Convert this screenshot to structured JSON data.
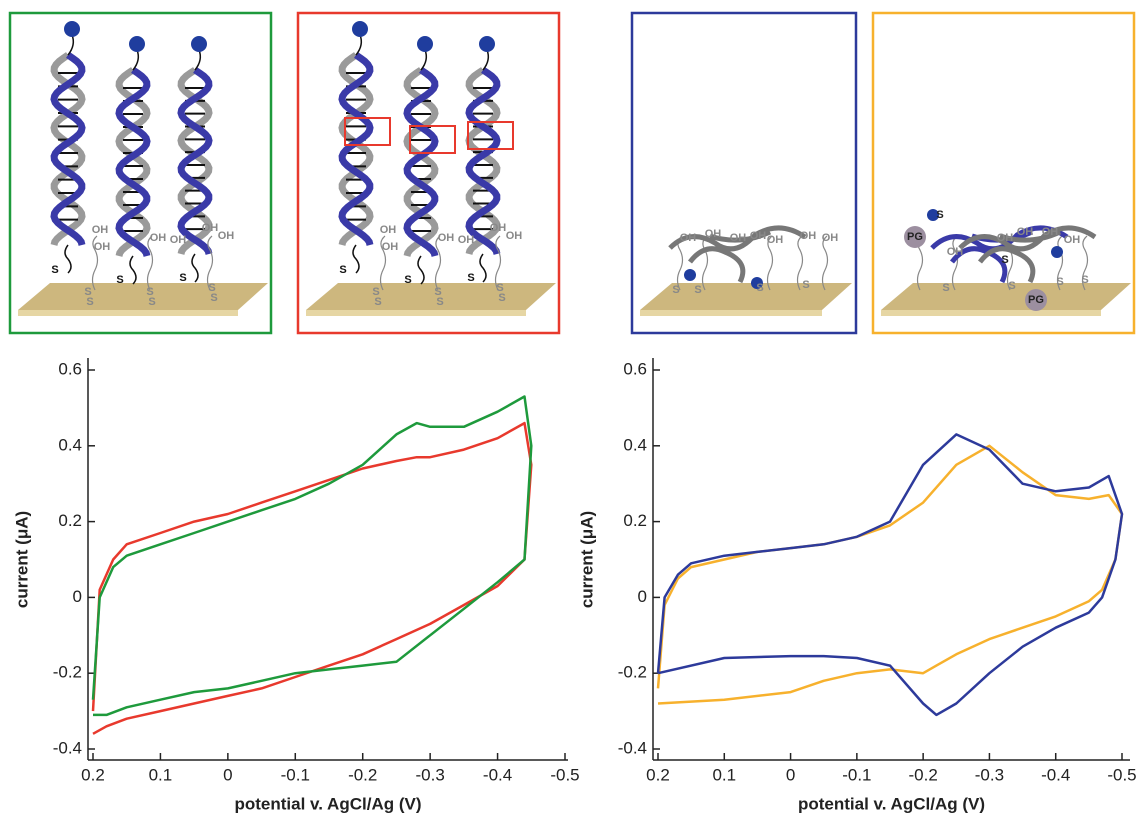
{
  "chart_data": [
    {
      "type": "line",
      "x_label": "potential v. AgCl/Ag (V)",
      "y_label": "current (μA)",
      "x": [
        0.2,
        0.19,
        0.17,
        0.15,
        0.1,
        0.05,
        0,
        -0.05,
        -0.1,
        -0.15,
        -0.2,
        -0.25,
        -0.28,
        -0.3,
        -0.35,
        -0.4,
        -0.44,
        -0.45,
        -0.44,
        -0.4,
        -0.35,
        -0.3,
        -0.25,
        -0.2,
        -0.15,
        -0.1,
        -0.05,
        0,
        0.05,
        0.1,
        0.15,
        0.18,
        0.2
      ],
      "xlim": [
        0.2,
        -0.5
      ],
      "xticks": [
        0.2,
        0.1,
        0,
        -0.1,
        -0.2,
        -0.3,
        -0.4,
        -0.5
      ],
      "ylim": [
        -0.4,
        0.6
      ],
      "yticks": [
        0.6,
        0.4,
        0.2,
        0,
        -0.2,
        -0.4
      ],
      "series": [
        {
          "color": "#e8392d",
          "values": [
            -0.3,
            0.02,
            0.1,
            0.14,
            0.17,
            0.2,
            0.22,
            0.25,
            0.28,
            0.31,
            0.34,
            0.36,
            0.37,
            0.37,
            0.39,
            0.42,
            0.46,
            0.35,
            0.1,
            0.03,
            -0.02,
            -0.07,
            -0.11,
            -0.15,
            -0.18,
            -0.21,
            -0.24,
            -0.26,
            -0.28,
            -0.3,
            -0.32,
            -0.34,
            -0.36
          ]
        },
        {
          "color": "#1e9a3c",
          "values": [
            -0.27,
            0.0,
            0.08,
            0.11,
            0.14,
            0.17,
            0.2,
            0.23,
            0.26,
            0.3,
            0.35,
            0.43,
            0.46,
            0.45,
            0.45,
            0.49,
            0.53,
            0.4,
            0.1,
            0.04,
            -0.03,
            -0.1,
            -0.17,
            -0.18,
            -0.19,
            -0.2,
            -0.22,
            -0.24,
            -0.25,
            -0.27,
            -0.29,
            -0.31,
            -0.31
          ]
        }
      ]
    },
    {
      "type": "line",
      "x_label": "potential v. AgCl/Ag (V)",
      "y_label": "current (μA)",
      "x": [
        0.2,
        0.19,
        0.17,
        0.15,
        0.1,
        0.05,
        0,
        -0.05,
        -0.1,
        -0.15,
        -0.2,
        -0.25,
        -0.3,
        -0.35,
        -0.4,
        -0.45,
        -0.48,
        -0.5,
        -0.49,
        -0.47,
        -0.45,
        -0.4,
        -0.35,
        -0.3,
        -0.25,
        -0.22,
        -0.2,
        -0.15,
        -0.1,
        -0.05,
        0,
        0.1,
        0.2
      ],
      "xlim": [
        0.2,
        -0.5
      ],
      "xticks": [
        0.2,
        0.1,
        0,
        -0.1,
        -0.2,
        -0.3,
        -0.4,
        -0.5
      ],
      "ylim": [
        -0.4,
        0.6
      ],
      "yticks": [
        0.6,
        0.4,
        0.2,
        0,
        -0.2,
        -0.4
      ],
      "series": [
        {
          "color": "#f7b12d",
          "values": [
            -0.24,
            -0.02,
            0.05,
            0.08,
            0.1,
            0.12,
            0.13,
            0.14,
            0.16,
            0.19,
            0.25,
            0.35,
            0.4,
            0.33,
            0.27,
            0.26,
            0.27,
            0.22,
            0.1,
            0.02,
            -0.01,
            -0.05,
            -0.08,
            -0.11,
            -0.15,
            -0.18,
            -0.2,
            -0.19,
            -0.2,
            -0.22,
            -0.25,
            -0.27,
            -0.28
          ]
        },
        {
          "color": "#2d3a9b",
          "values": [
            -0.2,
            0.0,
            0.06,
            0.09,
            0.11,
            0.12,
            0.13,
            0.14,
            0.16,
            0.2,
            0.35,
            0.43,
            0.39,
            0.3,
            0.28,
            0.29,
            0.32,
            0.22,
            0.1,
            0.0,
            -0.04,
            -0.08,
            -0.13,
            -0.2,
            -0.28,
            -0.31,
            -0.28,
            -0.18,
            -0.16,
            -0.155,
            -0.155,
            -0.16,
            -0.2
          ]
        }
      ]
    }
  ],
  "schematics": [
    {
      "labels": [
        "S",
        "S",
        "S",
        "OH",
        "OH",
        "OH",
        "OH",
        "OH",
        "OH",
        "S",
        "S",
        "S",
        "S",
        "S",
        "S"
      ]
    },
    {
      "labels": [
        "S",
        "S",
        "S",
        "OH",
        "OH",
        "OH",
        "OH",
        "OH",
        "OH",
        "S",
        "S",
        "S",
        "S",
        "S",
        "S"
      ]
    },
    {
      "labels": [
        "OH",
        "OH",
        "OH",
        "OH",
        "OH",
        "OH",
        "OH",
        "S",
        "S",
        "S",
        "S"
      ]
    },
    {
      "labels": [
        "PG",
        "PG",
        "OH",
        "OH",
        "OH",
        "OH",
        "OH",
        "S",
        "S",
        "S",
        "S",
        "S",
        "S"
      ]
    }
  ]
}
